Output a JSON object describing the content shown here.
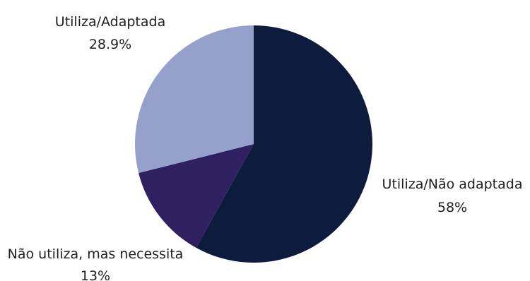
{
  "chart_data": {
    "type": "pie",
    "title": "",
    "slices": [
      {
        "label": "Utiliza/Não adaptada",
        "value": 58,
        "display": "58%",
        "color": "#0d1b3d"
      },
      {
        "label": "Não utiliza, mas necessita",
        "value": 13,
        "display": "13%",
        "color": "#2e2061"
      },
      {
        "label": "Utiliza/Adaptada",
        "value": 28.9,
        "display": "28.9%",
        "color": "#95a1cb"
      }
    ],
    "start": "12 o'clock",
    "direction": "clockwise",
    "legend": "none",
    "labels": "outside, category and percentage"
  }
}
